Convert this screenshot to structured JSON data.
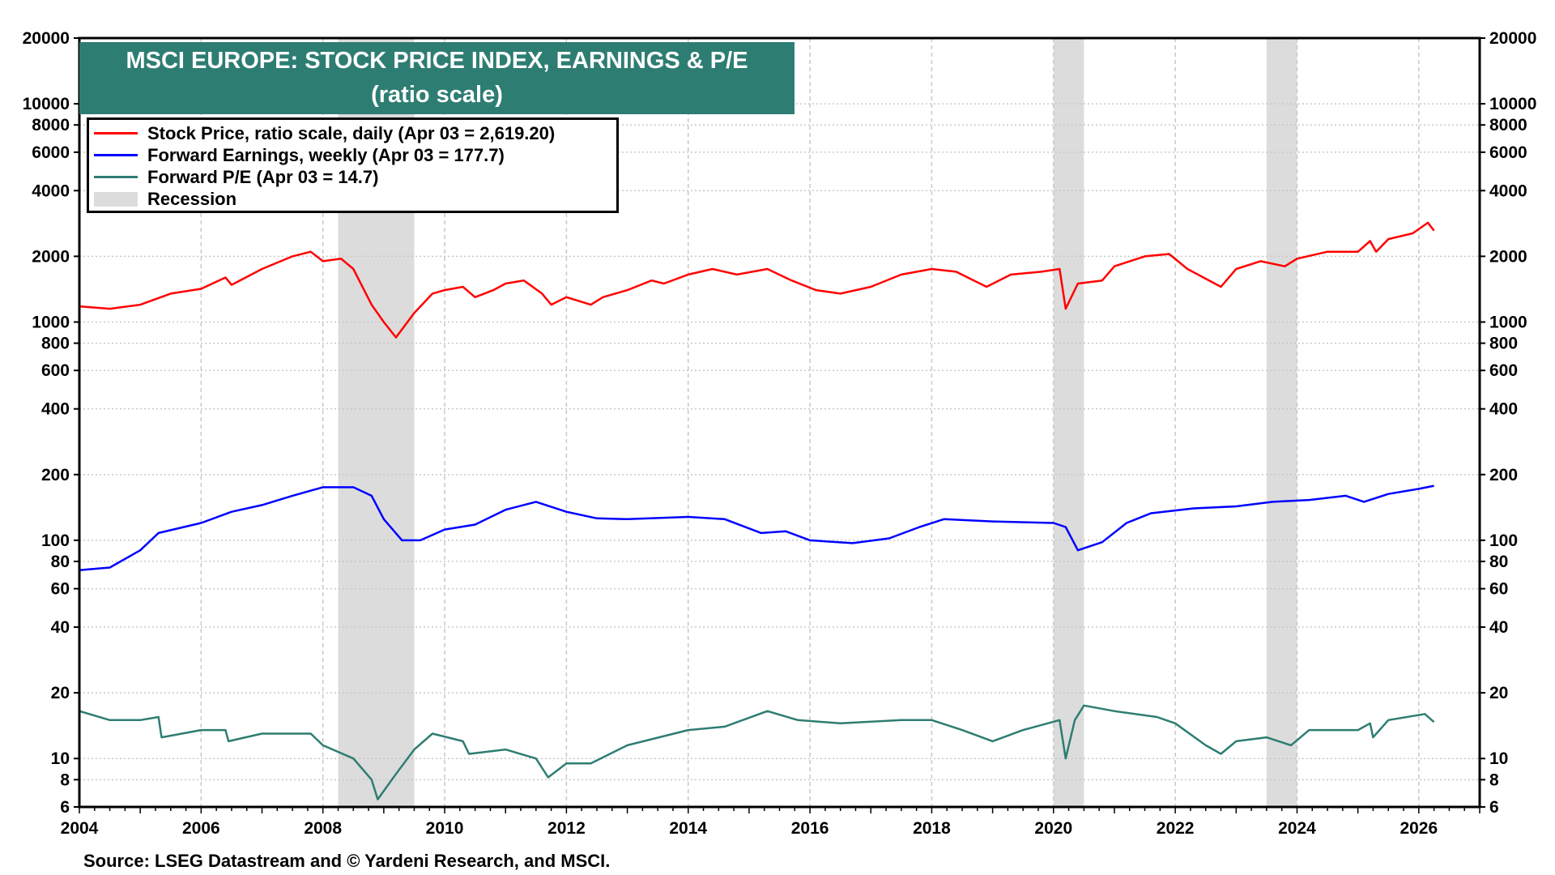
{
  "chart_data": {
    "type": "line",
    "title": "MSCI EUROPE: STOCK PRICE INDEX, EARNINGS & P/E",
    "subtitle": "(ratio scale)",
    "source": "Source: LSEG Datastream and © Yardeni Research, and MSCI.",
    "y_scale": "log",
    "ylim": [
      6,
      20000
    ],
    "xlim": [
      2004,
      2027
    ],
    "y_ticks": [
      20000,
      10000,
      8000,
      6000,
      4000,
      2000,
      1000,
      800,
      600,
      400,
      200,
      100,
      80,
      60,
      40,
      20,
      10,
      8,
      6
    ],
    "x_ticks": [
      2004,
      2006,
      2008,
      2010,
      2012,
      2014,
      2016,
      2018,
      2020,
      2022,
      2024,
      2026
    ],
    "grid": true,
    "legend_position": "top-left",
    "recessions": [
      [
        2008.25,
        2009.5
      ],
      [
        2020.0,
        2020.5
      ],
      [
        2023.5,
        2024.0
      ]
    ],
    "series": [
      {
        "name": "Stock Price, ratio scale, daily (Apr 03 = 2,619.20)",
        "color": "#ff0000",
        "points": [
          [
            2004.0,
            1180
          ],
          [
            2004.5,
            1150
          ],
          [
            2005.0,
            1200
          ],
          [
            2005.5,
            1350
          ],
          [
            2006.0,
            1420
          ],
          [
            2006.4,
            1600
          ],
          [
            2006.5,
            1480
          ],
          [
            2007.0,
            1750
          ],
          [
            2007.5,
            2000
          ],
          [
            2007.8,
            2100
          ],
          [
            2008.0,
            1900
          ],
          [
            2008.3,
            1950
          ],
          [
            2008.5,
            1750
          ],
          [
            2008.8,
            1200
          ],
          [
            2009.0,
            1000
          ],
          [
            2009.2,
            850
          ],
          [
            2009.5,
            1100
          ],
          [
            2009.8,
            1350
          ],
          [
            2010.0,
            1400
          ],
          [
            2010.3,
            1450
          ],
          [
            2010.5,
            1300
          ],
          [
            2010.8,
            1400
          ],
          [
            2011.0,
            1500
          ],
          [
            2011.3,
            1550
          ],
          [
            2011.6,
            1350
          ],
          [
            2011.75,
            1200
          ],
          [
            2012.0,
            1300
          ],
          [
            2012.4,
            1200
          ],
          [
            2012.6,
            1300
          ],
          [
            2013.0,
            1400
          ],
          [
            2013.4,
            1550
          ],
          [
            2013.6,
            1500
          ],
          [
            2014.0,
            1650
          ],
          [
            2014.4,
            1750
          ],
          [
            2014.8,
            1650
          ],
          [
            2015.3,
            1750
          ],
          [
            2015.7,
            1550
          ],
          [
            2016.1,
            1400
          ],
          [
            2016.5,
            1350
          ],
          [
            2017.0,
            1450
          ],
          [
            2017.5,
            1650
          ],
          [
            2018.0,
            1750
          ],
          [
            2018.4,
            1700
          ],
          [
            2018.9,
            1450
          ],
          [
            2019.3,
            1650
          ],
          [
            2019.8,
            1700
          ],
          [
            2020.1,
            1750
          ],
          [
            2020.2,
            1150
          ],
          [
            2020.4,
            1500
          ],
          [
            2020.8,
            1550
          ],
          [
            2021.0,
            1800
          ],
          [
            2021.5,
            2000
          ],
          [
            2021.9,
            2050
          ],
          [
            2022.2,
            1750
          ],
          [
            2022.75,
            1450
          ],
          [
            2023.0,
            1750
          ],
          [
            2023.4,
            1900
          ],
          [
            2023.8,
            1800
          ],
          [
            2024.0,
            1950
          ],
          [
            2024.5,
            2100
          ],
          [
            2025.0,
            2100
          ],
          [
            2025.2,
            2350
          ],
          [
            2025.3,
            2100
          ],
          [
            2025.5,
            2400
          ],
          [
            2025.9,
            2550
          ],
          [
            2026.15,
            2850
          ],
          [
            2026.25,
            2619.2
          ]
        ]
      },
      {
        "name": "Forward Earnings, weekly (Apr 03 = 177.7)",
        "color": "#0000ff",
        "points": [
          [
            2004.0,
            73
          ],
          [
            2004.5,
            75
          ],
          [
            2005.0,
            90
          ],
          [
            2005.3,
            108
          ],
          [
            2006.0,
            120
          ],
          [
            2006.5,
            135
          ],
          [
            2007.0,
            145
          ],
          [
            2007.5,
            160
          ],
          [
            2008.0,
            175
          ],
          [
            2008.5,
            175
          ],
          [
            2008.8,
            160
          ],
          [
            2009.0,
            125
          ],
          [
            2009.3,
            100
          ],
          [
            2009.6,
            100
          ],
          [
            2010.0,
            112
          ],
          [
            2010.5,
            118
          ],
          [
            2011.0,
            138
          ],
          [
            2011.5,
            150
          ],
          [
            2012.0,
            135
          ],
          [
            2012.5,
            126
          ],
          [
            2013.0,
            125
          ],
          [
            2014.0,
            128
          ],
          [
            2014.6,
            125
          ],
          [
            2015.2,
            108
          ],
          [
            2015.6,
            110
          ],
          [
            2016.0,
            100
          ],
          [
            2016.7,
            97
          ],
          [
            2017.3,
            102
          ],
          [
            2017.8,
            115
          ],
          [
            2018.2,
            125
          ],
          [
            2019.0,
            122
          ],
          [
            2020.0,
            120
          ],
          [
            2020.2,
            115
          ],
          [
            2020.4,
            90
          ],
          [
            2020.8,
            98
          ],
          [
            2021.2,
            120
          ],
          [
            2021.6,
            133
          ],
          [
            2022.3,
            140
          ],
          [
            2023.0,
            143
          ],
          [
            2023.6,
            150
          ],
          [
            2024.2,
            153
          ],
          [
            2024.8,
            160
          ],
          [
            2025.1,
            150
          ],
          [
            2025.5,
            163
          ],
          [
            2026.0,
            172
          ],
          [
            2026.25,
            177.7
          ]
        ]
      },
      {
        "name": "Forward P/E (Apr 03 = 14.7)",
        "color": "#2e7d72",
        "points": [
          [
            2004.0,
            16.5
          ],
          [
            2004.5,
            15
          ],
          [
            2005.0,
            15
          ],
          [
            2005.3,
            15.5
          ],
          [
            2005.35,
            12.5
          ],
          [
            2006.0,
            13.5
          ],
          [
            2006.4,
            13.5
          ],
          [
            2006.45,
            12
          ],
          [
            2007.0,
            13
          ],
          [
            2007.8,
            13
          ],
          [
            2008.0,
            11.5
          ],
          [
            2008.5,
            10
          ],
          [
            2008.8,
            8
          ],
          [
            2008.9,
            6.5
          ],
          [
            2009.2,
            8.5
          ],
          [
            2009.5,
            11
          ],
          [
            2009.8,
            13
          ],
          [
            2010.3,
            12
          ],
          [
            2010.4,
            10.5
          ],
          [
            2011.0,
            11
          ],
          [
            2011.5,
            10
          ],
          [
            2011.7,
            8.2
          ],
          [
            2012.0,
            9.5
          ],
          [
            2012.4,
            9.5
          ],
          [
            2013.0,
            11.5
          ],
          [
            2014.0,
            13.5
          ],
          [
            2014.6,
            14
          ],
          [
            2015.3,
            16.5
          ],
          [
            2015.8,
            15
          ],
          [
            2016.5,
            14.5
          ],
          [
            2017.5,
            15
          ],
          [
            2018.0,
            15
          ],
          [
            2018.5,
            13.5
          ],
          [
            2019.0,
            12
          ],
          [
            2019.5,
            13.5
          ],
          [
            2020.1,
            15
          ],
          [
            2020.2,
            10
          ],
          [
            2020.35,
            15
          ],
          [
            2020.5,
            17.5
          ],
          [
            2021.0,
            16.5
          ],
          [
            2021.7,
            15.5
          ],
          [
            2022.0,
            14.5
          ],
          [
            2022.5,
            11.5
          ],
          [
            2022.75,
            10.5
          ],
          [
            2023.0,
            12
          ],
          [
            2023.5,
            12.5
          ],
          [
            2023.9,
            11.5
          ],
          [
            2024.2,
            13.5
          ],
          [
            2025.0,
            13.5
          ],
          [
            2025.2,
            14.5
          ],
          [
            2025.25,
            12.5
          ],
          [
            2025.5,
            15
          ],
          [
            2026.1,
            16
          ],
          [
            2026.25,
            14.7
          ]
        ]
      }
    ],
    "recession_label": "Recession",
    "recession_color": "#dcdcdc"
  }
}
